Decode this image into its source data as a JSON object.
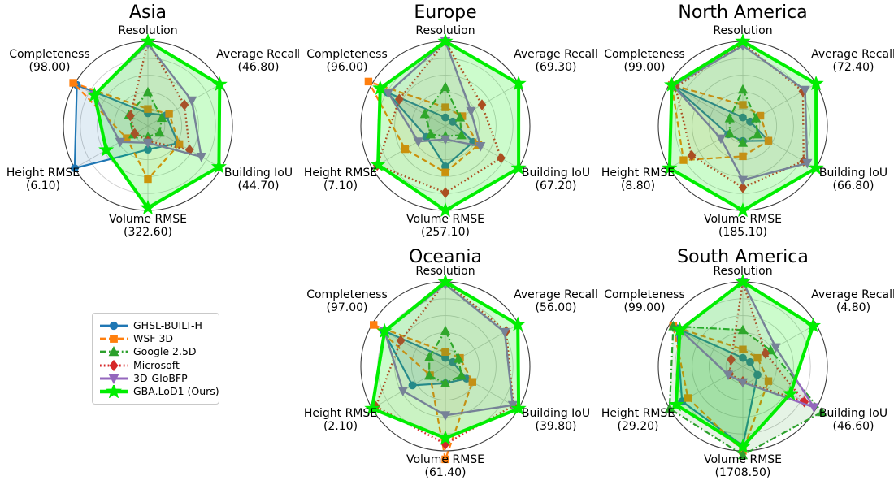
{
  "style": {
    "background": "#ffffff",
    "grid_color": "#c9c9c9",
    "outline_color": "#3c3c3c",
    "text_color": "#000000"
  },
  "legend": {
    "items": [
      {
        "label": "GHSL-BUILT-H",
        "color": "#1f77b4",
        "marker": "circle",
        "line_style": "solid",
        "line_width": 2.2,
        "fill_opacity": 0.13
      },
      {
        "label": "WSF 3D",
        "color": "#ff7f0e",
        "marker": "square",
        "line_style": "dashed",
        "line_width": 2.2,
        "fill_opacity": 0.06
      },
      {
        "label": "Google 2.5D",
        "color": "#2ca02c",
        "marker": "triangle-up",
        "line_style": "dashdot",
        "line_width": 2.2,
        "fill_opacity": 0.12
      },
      {
        "label": "Microsoft",
        "color": "#d62728",
        "marker": "diamond",
        "line_style": "dotted",
        "line_width": 2.4,
        "fill_opacity": 0.05
      },
      {
        "label": "3D-GloBFP",
        "color": "#9467bd",
        "marker": "triangle-down",
        "line_style": "solid",
        "line_width": 2.4,
        "fill_opacity": 0.08
      },
      {
        "label": "GBA.LoD1 (Ours)",
        "color": "#00ee00",
        "marker": "star",
        "line_style": "solid",
        "line_width": 4.0,
        "fill_opacity": 0.2
      }
    ]
  },
  "axes": [
    "Resolution",
    "Average Recall",
    "Building IoU",
    "Volume RMSE",
    "Height RMSE",
    "Completeness"
  ],
  "values_scale": "fraction of outer radius (0 = center, 1 = outer circle)",
  "chart_data": [
    {
      "type": "radar",
      "title": "Asia",
      "axis_values": [
        null,
        "46.80",
        "44.70",
        "322.60",
        "6.10",
        "98.00"
      ],
      "series": [
        {
          "name": "GHSL-BUILT-H",
          "values": [
            0.15,
            0.25,
            0.41,
            0.28,
            1.0,
            0.97
          ]
        },
        {
          "name": "WSF 3D",
          "values": [
            0.2,
            0.29,
            0.43,
            0.63,
            0.29,
            1.02
          ]
        },
        {
          "name": "Google 2.5D",
          "values": [
            0.4,
            0.19,
            0.16,
            0.13,
            0.2,
            0.26
          ]
        },
        {
          "name": "Microsoft",
          "values": [
            1.0,
            0.5,
            0.57,
            0.18,
            0.18,
            0.24
          ]
        },
        {
          "name": "3D-GloBFP",
          "values": [
            0.97,
            0.6,
            0.73,
            0.2,
            0.38,
            0.73
          ]
        },
        {
          "name": "GBA.LoD1 (Ours)",
          "values": [
            1.0,
            0.98,
            0.97,
            0.97,
            0.57,
            0.73
          ]
        }
      ]
    },
    {
      "type": "radar",
      "title": "Europe",
      "axis_values": [
        null,
        "69.30",
        "67.20",
        "257.10",
        "7.10",
        "96.00"
      ],
      "series": [
        {
          "name": "GHSL-BUILT-H",
          "values": [
            0.1,
            0.1,
            0.38,
            0.48,
            0.26,
            0.79
          ]
        },
        {
          "name": "WSF 3D",
          "values": [
            0.22,
            0.23,
            0.45,
            0.55,
            0.55,
            1.05
          ]
        },
        {
          "name": "Google 2.5D",
          "values": [
            0.46,
            0.2,
            0.22,
            0.12,
            0.2,
            0.28
          ]
        },
        {
          "name": "Microsoft",
          "values": [
            1.0,
            0.5,
            0.76,
            0.79,
            0.93,
            0.63
          ]
        },
        {
          "name": "3D-GloBFP",
          "values": [
            1.0,
            0.35,
            0.48,
            0.16,
            0.37,
            0.78
          ]
        },
        {
          "name": "GBA.LoD1 (Ours)",
          "values": [
            1.0,
            1.0,
            1.0,
            1.0,
            0.92,
            0.89
          ]
        }
      ]
    },
    {
      "type": "radar",
      "title": "North America",
      "axis_values": [
        null,
        "72.40",
        "66.80",
        "185.10",
        "8.80",
        "99.00"
      ],
      "series": [
        {
          "name": "GHSL-BUILT-H",
          "values": [
            0.1,
            0.1,
            0.35,
            0.18,
            0.2,
            0.95
          ]
        },
        {
          "name": "WSF 3D",
          "values": [
            0.25,
            0.24,
            0.35,
            0.36,
            0.81,
            0.97
          ]
        },
        {
          "name": "Google 2.5D",
          "values": [
            0.43,
            0.18,
            0.2,
            0.2,
            0.18,
            0.18
          ]
        },
        {
          "name": "Microsoft",
          "values": [
            0.98,
            0.82,
            0.83,
            0.73,
            0.7,
            0.92
          ]
        },
        {
          "name": "3D-GloBFP",
          "values": [
            0.95,
            0.85,
            0.88,
            0.64,
            0.3,
            0.95
          ]
        },
        {
          "name": "GBA.LoD1 (Ours)",
          "values": [
            1.0,
            1.0,
            1.0,
            1.0,
            1.0,
            0.97
          ]
        }
      ]
    },
    {
      "type": "radar",
      "title": "Oceania",
      "axis_values": [
        null,
        "56.00",
        "39.80",
        "61.40",
        "2.10",
        "97.00"
      ],
      "series": [
        {
          "name": "GHSL-BUILT-H",
          "values": [
            0.1,
            0.1,
            0.29,
            0.2,
            0.45,
            0.85
          ]
        },
        {
          "name": "WSF 3D",
          "values": [
            0.17,
            0.2,
            0.37,
            1.1,
            0.21,
            0.98
          ]
        },
        {
          "name": "Google 2.5D",
          "values": [
            0.42,
            0.18,
            0.22,
            0.2,
            0.22,
            0.22
          ]
        },
        {
          "name": "Microsoft",
          "values": [
            1.0,
            0.83,
            0.93,
            0.92,
            0.95,
            0.61
          ]
        },
        {
          "name": "3D-GloBFP",
          "values": [
            0.97,
            0.81,
            0.92,
            0.58,
            0.58,
            0.83
          ]
        },
        {
          "name": "GBA.LoD1 (Ours)",
          "values": [
            1.0,
            0.99,
            1.0,
            0.85,
            1.0,
            0.83
          ]
        }
      ]
    },
    {
      "type": "radar",
      "title": "South America",
      "axis_values": [
        null,
        "4.80",
        "46.60",
        "1708.50",
        "29.20",
        "99.00"
      ],
      "series": [
        {
          "name": "GHSL-BUILT-H",
          "values": [
            0.1,
            0.1,
            0.2,
            0.94,
            0.83,
            0.9
          ]
        },
        {
          "name": "WSF 3D",
          "values": [
            0.2,
            0.2,
            0.35,
            1.0,
            0.75,
            0.95
          ]
        },
        {
          "name": "Google 2.5D",
          "values": [
            0.43,
            0.38,
            1.08,
            1.05,
            1.0,
            0.95
          ]
        },
        {
          "name": "Microsoft",
          "values": [
            1.0,
            0.31,
            0.84,
            0.18,
            0.18,
            0.16
          ]
        },
        {
          "name": "3D-GloBFP",
          "values": [
            1.0,
            0.45,
            0.97,
            0.19,
            0.2,
            0.85
          ]
        },
        {
          "name": "GBA.LoD1 (Ours)",
          "values": [
            1.0,
            0.96,
            0.65,
            0.95,
            0.91,
            0.86
          ]
        }
      ]
    }
  ]
}
